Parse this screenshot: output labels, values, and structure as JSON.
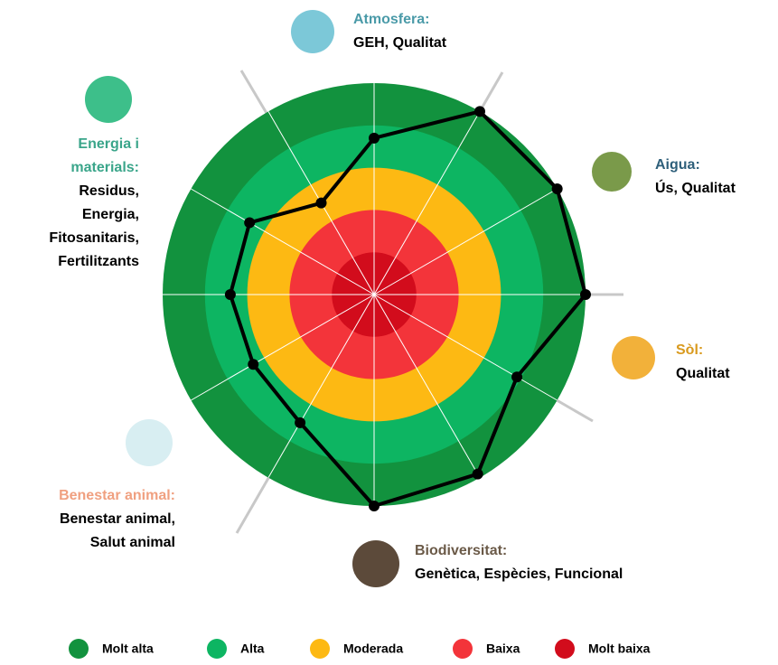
{
  "chart_data": {
    "type": "radar",
    "rlim": [
      0,
      5
    ],
    "values": [
      3.7,
      5,
      5,
      5,
      3.9,
      4.9,
      5,
      3.5,
      3.3,
      3.4,
      3.4,
      2.5
    ],
    "line_color": "#000000",
    "bands": [
      {
        "name": "Molt alta",
        "color": "#12923e",
        "max": 5
      },
      {
        "name": "Alta",
        "color": "#0db562",
        "max": 4
      },
      {
        "name": "Moderada",
        "color": "#fdb913",
        "max": 3
      },
      {
        "name": "Baixa",
        "color": "#f3343a",
        "max": 2
      },
      {
        "name": "Molt baixa",
        "color": "#d20c1c",
        "max": 1
      }
    ]
  },
  "groups": [
    {
      "title": [
        "Atmosfera:"
      ],
      "color": "#4a9aa8",
      "lines": [
        "GEH, Qualitat"
      ]
    },
    {
      "title": [
        "Aigua:"
      ],
      "color": "#2e5f7a",
      "lines": [
        "Ús, Qualitat"
      ]
    },
    {
      "title": [
        "Sòl:"
      ],
      "color": "#d99a1e",
      "lines": [
        "Qualitat"
      ]
    },
    {
      "title": [
        "Biodiversitat:"
      ],
      "color": "#6b5a48",
      "lines": [
        "Genètica, Espècies, Funcional"
      ]
    },
    {
      "title": [
        "Benestar animal:"
      ],
      "color": "#f0a080",
      "lines": [
        "Benestar animal,",
        "Salut animal"
      ]
    },
    {
      "title": [
        "Energia i",
        "materials:"
      ],
      "color": "#3aa58a",
      "lines": [
        "Residus,",
        "Energia,",
        "Fitosanitaris,",
        "Fertilitzants"
      ]
    }
  ]
}
